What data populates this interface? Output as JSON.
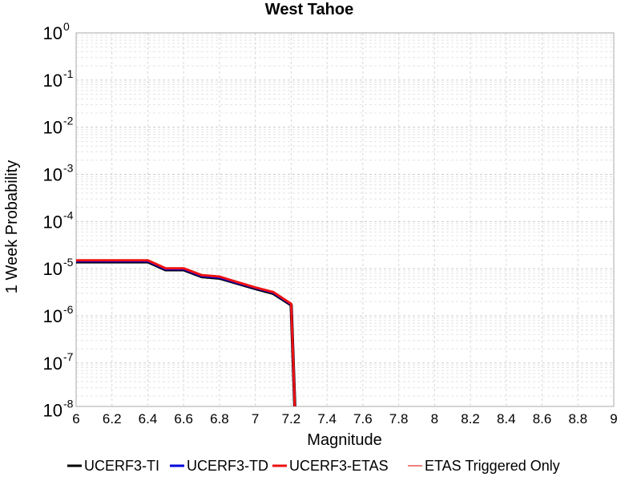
{
  "chart_data": {
    "type": "line",
    "title": "West Tahoe",
    "xlabel": "Magnitude",
    "ylabel": "1 Week Probability",
    "xlim": [
      6,
      9
    ],
    "ylim": [
      1.2e-08,
      1
    ],
    "yscale": "log",
    "grid": true,
    "legend_position": "bottom",
    "x_ticks": [
      "6",
      "6.2",
      "6.4",
      "6.6",
      "6.8",
      "7",
      "7.2",
      "7.4",
      "7.6",
      "7.8",
      "8",
      "8.2",
      "8.4",
      "8.6",
      "8.8",
      "9"
    ],
    "y_ticks": [
      {
        "base": "10",
        "exp": "0"
      },
      {
        "base": "10",
        "exp": "-1"
      },
      {
        "base": "10",
        "exp": "-2"
      },
      {
        "base": "10",
        "exp": "-3"
      },
      {
        "base": "10",
        "exp": "-4"
      },
      {
        "base": "10",
        "exp": "-5"
      },
      {
        "base": "10",
        "exp": "-6"
      },
      {
        "base": "10",
        "exp": "-7"
      },
      {
        "base": "10",
        "exp": "-8"
      }
    ],
    "series": [
      {
        "name": "UCERF3-TI",
        "color": "#000000",
        "x": [
          6.0,
          6.1,
          6.2,
          6.3,
          6.4,
          6.5,
          6.6,
          6.7,
          6.8,
          6.9,
          7.0,
          7.1,
          7.2,
          7.22
        ],
        "y": [
          1.4e-05,
          1.4e-05,
          1.4e-05,
          1.4e-05,
          1.4e-05,
          9.5e-06,
          9.5e-06,
          6.8e-06,
          6.3e-06,
          4.9e-06,
          3.8e-06,
          3e-06,
          1.7e-06,
          1e-08
        ]
      },
      {
        "name": "UCERF3-TD",
        "color": "#0000dd",
        "x": [
          6.0,
          6.1,
          6.2,
          6.3,
          6.4,
          6.5,
          6.6,
          6.7,
          6.8,
          6.9,
          7.0,
          7.1,
          7.2,
          7.22
        ],
        "y": [
          1.45e-05,
          1.45e-05,
          1.45e-05,
          1.45e-05,
          1.45e-05,
          9.8e-06,
          9.8e-06,
          7e-06,
          6.5e-06,
          5e-06,
          3.9e-06,
          3.1e-06,
          1.75e-06,
          1e-08
        ]
      },
      {
        "name": "UCERF3-ETAS",
        "color": "#ee1111",
        "x": [
          6.0,
          6.1,
          6.2,
          6.3,
          6.4,
          6.5,
          6.6,
          6.7,
          6.8,
          6.9,
          7.0,
          7.1,
          7.2,
          7.22
        ],
        "y": [
          1.5e-05,
          1.5e-05,
          1.5e-05,
          1.5e-05,
          1.5e-05,
          1.02e-05,
          1.02e-05,
          7.3e-06,
          6.8e-06,
          5.2e-06,
          4e-06,
          3.2e-06,
          1.8e-06,
          1e-08
        ]
      },
      {
        "name": "ETAS Triggered Only",
        "color": "#f08080",
        "x": [],
        "y": []
      }
    ]
  }
}
